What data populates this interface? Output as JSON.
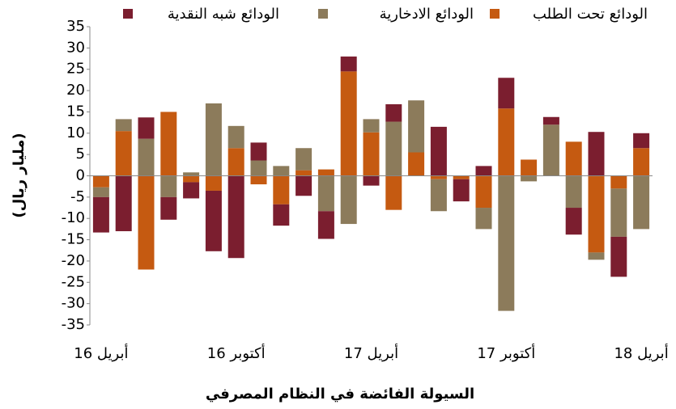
{
  "chart_data": {
    "type": "bar",
    "stacked": true,
    "x_label": "السيولة الفائضة في النظام المصرفي",
    "y_label": "(مليار ريال)",
    "categories": [
      "أبريل 16",
      null,
      null,
      null,
      null,
      null,
      "أكتوبر 16",
      null,
      null,
      null,
      null,
      null,
      "أبريل 17",
      null,
      null,
      null,
      null,
      null,
      "أكتوبر 17",
      null,
      null,
      null,
      null,
      null,
      "أبريل 18"
    ],
    "series": [
      {
        "name": "الودائع تحت الطلب",
        "color": "#c55a11",
        "values": [
          -2.7,
          10.5,
          -22,
          15,
          -1.5,
          -3.5,
          6.5,
          -2,
          -6.7,
          1.3,
          1.5,
          24.5,
          10.2,
          -8,
          5.5,
          -0.8,
          -0.8,
          -7.5,
          15.8,
          3.8,
          0,
          8,
          -18,
          -3,
          6.5
        ]
      },
      {
        "name": "الودائع الادخارية",
        "color": "#8c7b5b",
        "values": [
          -2.3,
          2.8,
          8.7,
          -5,
          0.8,
          17,
          5.2,
          3.6,
          2.3,
          5.2,
          -8.3,
          -11.3,
          3.1,
          12.7,
          12.2,
          -7.5,
          0,
          -5,
          -31.7,
          -1.3,
          12,
          -7.5,
          -1.7,
          -11.3,
          -12.5
        ]
      },
      {
        "name": "الودائع شبه النقدية",
        "color": "#7b1e2f",
        "values": [
          -8.3,
          -13,
          5,
          -5.3,
          -3.8,
          -14.2,
          -19.3,
          4.2,
          -5,
          -4.7,
          -6.5,
          3.5,
          -2.3,
          4.1,
          0,
          11.5,
          -5.2,
          2.3,
          7.2,
          0,
          1.8,
          -6.3,
          10.3,
          -9.4,
          3.5
        ]
      }
    ],
    "ylim": [
      -35,
      35
    ],
    "yticks": [
      -35,
      -30,
      -25,
      -20,
      -15,
      -10,
      -5,
      0,
      5,
      10,
      15,
      20,
      25,
      30,
      35
    ],
    "grid": false
  }
}
